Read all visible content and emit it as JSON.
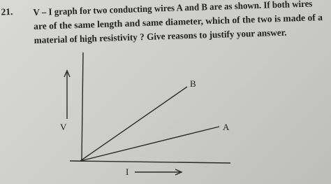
{
  "question": {
    "number": "21.",
    "lines": [
      "V – I graph for two conducting wires A and B are as shown. If both wires",
      "are of the same length and same diameter, which of the two is made of a",
      "material of high resistivity ? Give reasons to justify your answer."
    ]
  },
  "graph": {
    "y_label": "V",
    "x_label": "I",
    "lines": [
      {
        "label": "B"
      },
      {
        "label": "A"
      }
    ]
  }
}
